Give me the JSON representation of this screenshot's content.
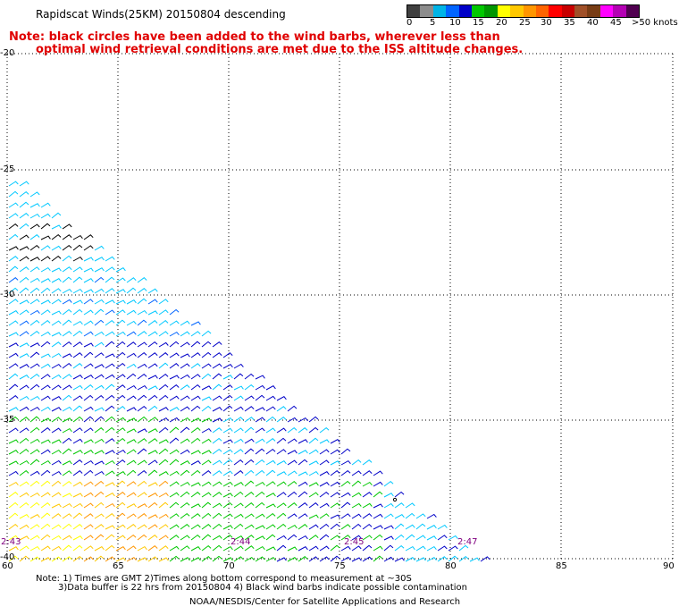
{
  "header": {
    "title": "Rapidscat Winds(25KM) 20150804 descending",
    "note_line1": "Note: black circles have been added to the wind barbs, wherever less than",
    "note_line2": "optimal wind retrieval conditions are met due to the ISS altitude changes."
  },
  "colorbar": {
    "labels": [
      "0",
      "5",
      "10",
      "15",
      "20",
      "25",
      "30",
      "35",
      "40",
      "45",
      ">50 knots"
    ],
    "colors": [
      "#404040",
      "#8c8c8c",
      "#00b4e6",
      "#0064ff",
      "#0000c8",
      "#00c800",
      "#009600",
      "#ffff00",
      "#ffc800",
      "#ff9600",
      "#ff6400",
      "#ff0000",
      "#c80000",
      "#a05028",
      "#783c14",
      "#ff00ff",
      "#b400b4",
      "#500050"
    ]
  },
  "axes": {
    "lat_labels": [
      "-20",
      "-25",
      "-30",
      "-35",
      "-40"
    ],
    "lon_labels": [
      "60",
      "65",
      "70",
      "75",
      "80",
      "85",
      "90"
    ],
    "grid": "dotted"
  },
  "time_labels": [
    "2:43",
    "2:44",
    "2:45",
    "2:47"
  ],
  "footer": {
    "line1": "Note: 1) Times are GMT 2)Times along bottom correspond to measurement at ~30S",
    "line2": "3)Data buffer is 22 hrs from 20150804 4) Black wind barbs indicate possible contamination",
    "line3": "NOAA/NESDIS/Center for Satellite Applications and Research"
  }
}
